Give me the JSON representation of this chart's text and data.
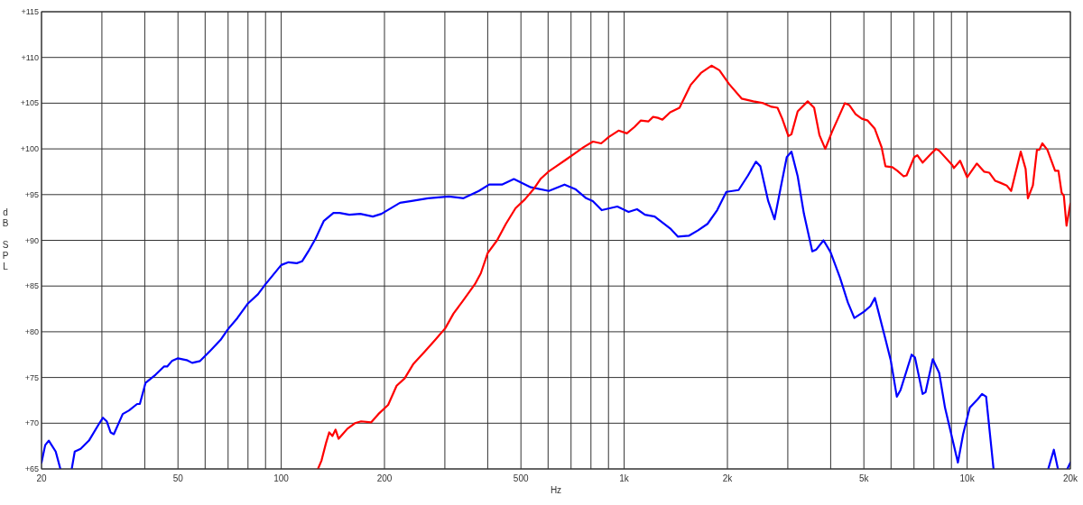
{
  "chart_data": {
    "type": "line",
    "xlabel": "Hz",
    "ylabel": "dB SPL",
    "log": "x",
    "grid": true,
    "xlim": [
      20,
      20000
    ],
    "ylim": [
      65,
      115
    ],
    "xticks": [
      20,
      {
        "value": 30,
        "label": null
      },
      {
        "value": 40,
        "label": null
      },
      50,
      {
        "value": 60,
        "label": null
      },
      {
        "value": 70,
        "label": null
      },
      {
        "value": 80,
        "label": null
      },
      {
        "value": 90,
        "label": null
      },
      100,
      200,
      {
        "value": 300,
        "label": null
      },
      {
        "value": 400,
        "label": null
      },
      500,
      {
        "value": 600,
        "label": null
      },
      {
        "value": 700,
        "label": null
      },
      {
        "value": 800,
        "label": null
      },
      {
        "value": 900,
        "label": null
      },
      {
        "value": 1000,
        "label": "1k"
      },
      {
        "value": 2000,
        "label": "2k"
      },
      {
        "value": 3000,
        "label": null
      },
      {
        "value": 4000,
        "label": null
      },
      {
        "value": 5000,
        "label": "5k"
      },
      {
        "value": 6000,
        "label": null
      },
      {
        "value": 7000,
        "label": null
      },
      {
        "value": 8000,
        "label": null
      },
      {
        "value": 9000,
        "label": null
      },
      {
        "value": 10000,
        "label": "10k"
      },
      {
        "value": 20000,
        "label": "20k"
      }
    ],
    "yticks": [
      {
        "value": 65,
        "label": "+65"
      },
      {
        "value": 70,
        "label": "+70"
      },
      {
        "value": 75,
        "label": "+75"
      },
      {
        "value": 80,
        "label": "+80"
      },
      {
        "value": 85,
        "label": "+85"
      },
      {
        "value": 90,
        "label": "+90"
      },
      {
        "value": 95,
        "label": "+95"
      },
      {
        "value": 100,
        "label": "+100"
      },
      {
        "value": 105,
        "label": "+105"
      },
      {
        "value": 110,
        "label": "+110"
      },
      {
        "value": 115,
        "label": "+115"
      }
    ],
    "series": [
      {
        "color": "#0000ff",
        "x": [
          20,
          20.5,
          21,
          22,
          22.7,
          23.5,
          24.5,
          25,
          26,
          27.5,
          29.5,
          30.2,
          31,
          31.8,
          32.5,
          34.5,
          36,
          38,
          38.7,
          40.2,
          43,
          45.5,
          46.5,
          48,
          50,
          53,
          55,
          58,
          62,
          66.5,
          70,
          74.5,
          80,
          85.5,
          90,
          100,
          105,
          111,
          115,
          120,
          126,
          133,
          142,
          148,
          158,
          170,
          185,
          196,
          222,
          240,
          268,
          308,
          340,
          377,
          404,
          440,
          477,
          534,
          603,
          670,
          720,
          775,
          810,
          860,
          955,
          1030,
          1090,
          1150,
          1227,
          1362,
          1435,
          1543,
          1643,
          1750,
          1867,
          1986,
          2156,
          2297,
          2422,
          2495,
          2630,
          2744,
          2858,
          2979,
          3074,
          3206,
          3343,
          3536,
          3633,
          3813,
          3997,
          4261,
          4490,
          4689,
          5004,
          5223,
          5383,
          5778,
          5994,
          6238,
          6390,
          6890,
          7044,
          7417,
          7566,
          7940,
          8290,
          8620,
          9400,
          9735,
          10180,
          10720,
          11050,
          11360,
          11940,
          14000,
          17240,
          17900,
          18400,
          19200,
          19600,
          20000
        ],
        "values": [
          65.7,
          67.6,
          68.1,
          66.9,
          65,
          null,
          65,
          66.9,
          67.2,
          68.1,
          70,
          70.6,
          70.2,
          69,
          68.8,
          71,
          71.4,
          72.1,
          72.1,
          74.4,
          75.3,
          76.2,
          76.2,
          76.8,
          77.1,
          76.9,
          76.6,
          76.8,
          77.9,
          79.1,
          80.3,
          81.5,
          83.1,
          84.1,
          85.2,
          87.3,
          87.6,
          87.5,
          87.7,
          88.8,
          90.2,
          92.1,
          93,
          93,
          92.8,
          92.9,
          92.6,
          92.9,
          94.1,
          94.3,
          94.6,
          94.8,
          94.6,
          95.4,
          96.1,
          96.1,
          96.7,
          95.8,
          95.4,
          96.1,
          95.6,
          94.6,
          94.3,
          93.3,
          93.7,
          93.1,
          93.4,
          92.8,
          92.6,
          91.3,
          90.4,
          90.5,
          91.1,
          91.8,
          93.3,
          95.3,
          95.5,
          97.1,
          98.6,
          98.1,
          94.3,
          92.3,
          95.7,
          99.1,
          99.7,
          97,
          92.9,
          88.8,
          89,
          90,
          88.7,
          85.9,
          83.2,
          81.5,
          82.2,
          82.8,
          83.7,
          79.2,
          76.8,
          72.9,
          73.6,
          77.5,
          77.2,
          73.2,
          73.4,
          77,
          75.5,
          71.7,
          65.7,
          68.8,
          71.7,
          72.6,
          73.2,
          72.9,
          65,
          null,
          65,
          67.1,
          65,
          null,
          65,
          65.7
        ]
      },
      {
        "color": "#ff0000",
        "x": [
          128,
          131,
          135,
          138,
          141,
          144,
          147,
          151,
          156,
          164,
          171,
          183,
          192,
          205,
          217,
          229,
          243,
          263,
          281,
          301,
          318,
          339,
          367,
          382,
          400,
          426,
          452,
          482,
          514,
          547,
          570,
          601,
          634,
          675,
          718,
          762,
          811,
          857,
          902,
          963,
          1018,
          1072,
          1117,
          1176,
          1214,
          1253,
          1293,
          1362,
          1450,
          1563,
          1674,
          1797,
          1895,
          2022,
          2200,
          2380,
          2545,
          2690,
          2800,
          2890,
          3012,
          3074,
          3206,
          3429,
          3580,
          3710,
          3858,
          4040,
          4400,
          4530,
          4730,
          4930,
          5130,
          5380,
          5630,
          5778,
          6050,
          6260,
          6530,
          6660,
          7010,
          7160,
          7420,
          7770,
          8110,
          8290,
          9060,
          9150,
          9540,
          10000,
          10670,
          11220,
          11600,
          12080,
          12490,
          13040,
          13440,
          14330,
          14810,
          15040,
          15550,
          15980,
          16240,
          16570,
          17140,
          18050,
          18460,
          18860,
          19140,
          19490,
          20000
        ],
        "values": [
          65,
          65.9,
          67.8,
          69,
          68.6,
          69.3,
          68.3,
          68.8,
          69.4,
          70,
          70.2,
          70.1,
          71,
          72,
          74.1,
          74.9,
          76.5,
          77.9,
          79.1,
          80.4,
          82,
          83.4,
          85.2,
          86.4,
          88.6,
          90,
          91.8,
          93.5,
          94.5,
          95.7,
          96.7,
          97.5,
          98.1,
          98.8,
          99.5,
          100.2,
          100.8,
          100.6,
          101.3,
          102,
          101.7,
          102.4,
          103.1,
          103,
          103.5,
          103.4,
          103.2,
          104,
          104.5,
          107,
          108.3,
          109.1,
          108.6,
          107.1,
          105.5,
          105.2,
          105,
          104.6,
          104.5,
          103.3,
          101.4,
          101.6,
          104.1,
          105.2,
          104.5,
          101.5,
          100,
          101.9,
          105,
          104.8,
          103.8,
          103.3,
          103.1,
          102.2,
          100.2,
          98.1,
          98,
          97.6,
          97,
          97.1,
          99.1,
          99.3,
          98.5,
          99.3,
          100,
          99.8,
          98.2,
          97.9,
          98.7,
          96.9,
          98.4,
          97.5,
          97.4,
          96.5,
          96.3,
          96,
          95.4,
          99.7,
          97.8,
          94.6,
          96,
          99.9,
          99.9,
          100.6,
          99.9,
          97.6,
          97.6,
          95.2,
          94.9,
          91.6,
          94
        ]
      }
    ]
  }
}
